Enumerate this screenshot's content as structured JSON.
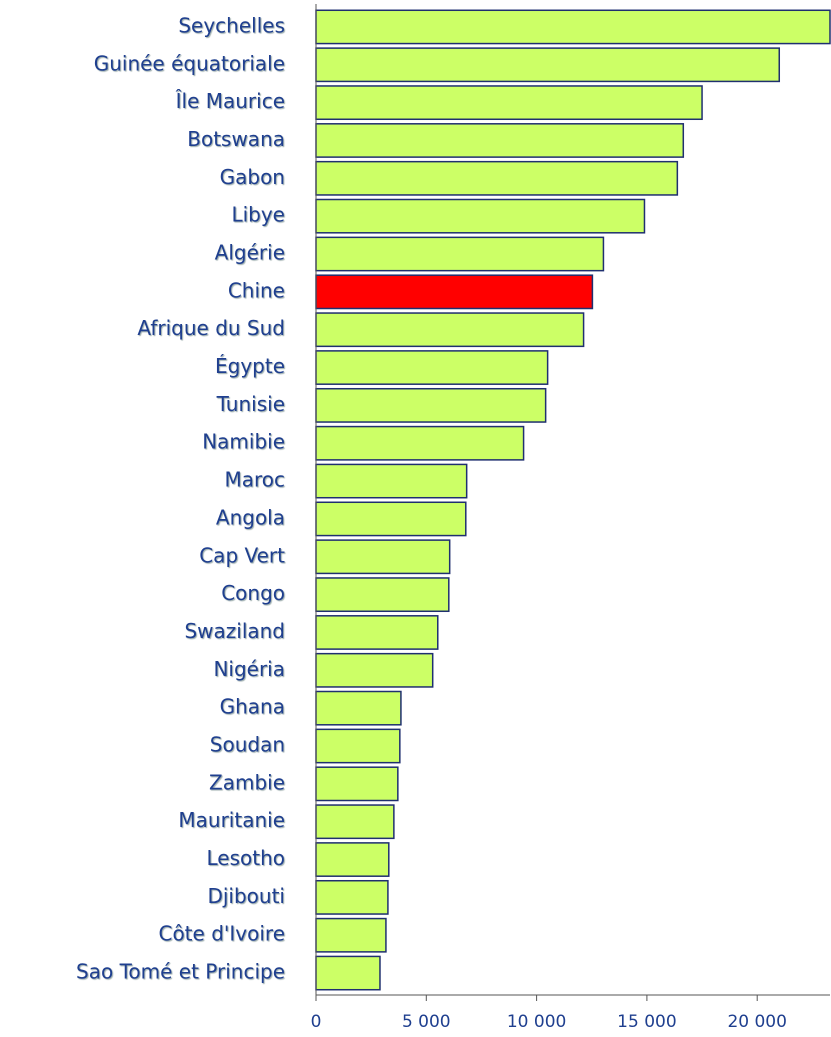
{
  "chart_data": {
    "type": "bar",
    "orientation": "horizontal",
    "categories": [
      "Seychelles",
      "Guinée équatoriale",
      "Île Maurice",
      "Botswana",
      "Gabon",
      "Libye",
      "Algérie",
      "Chine",
      "Afrique du Sud",
      "Égypte",
      "Tunisie",
      "Namibie",
      "Maroc",
      "Angola",
      "Cap Vert",
      "Congo",
      "Swaziland",
      "Nigéria",
      "Ghana",
      "Soudan",
      "Zambie",
      "Mauritanie",
      "Lesotho",
      "Djibouti",
      "Côte d'Ivoire",
      "Sao Tomé et Principe"
    ],
    "values": [
      23300,
      21000,
      17500,
      16650,
      16380,
      14890,
      13030,
      12530,
      12130,
      10500,
      10410,
      9410,
      6830,
      6790,
      6060,
      6020,
      5520,
      5290,
      3850,
      3800,
      3710,
      3530,
      3300,
      3260,
      3170,
      2900
    ],
    "colors": [
      "#ccff66",
      "#ccff66",
      "#ccff66",
      "#ccff66",
      "#ccff66",
      "#ccff66",
      "#ccff66",
      "#ff0000",
      "#ccff66",
      "#ccff66",
      "#ccff66",
      "#ccff66",
      "#ccff66",
      "#ccff66",
      "#ccff66",
      "#ccff66",
      "#ccff66",
      "#ccff66",
      "#ccff66",
      "#ccff66",
      "#ccff66",
      "#ccff66",
      "#ccff66",
      "#ccff66",
      "#ccff66",
      "#ccff66"
    ],
    "xlim": [
      0,
      23300
    ],
    "xticks": [
      0,
      {
        "value": 5000,
        "label": "5 000"
      },
      {
        "value": 10000,
        "label": "10 000"
      },
      {
        "value": 15000,
        "label": "15 000"
      },
      {
        "value": 20000,
        "label": "20 000"
      }
    ],
    "grid": false
  }
}
